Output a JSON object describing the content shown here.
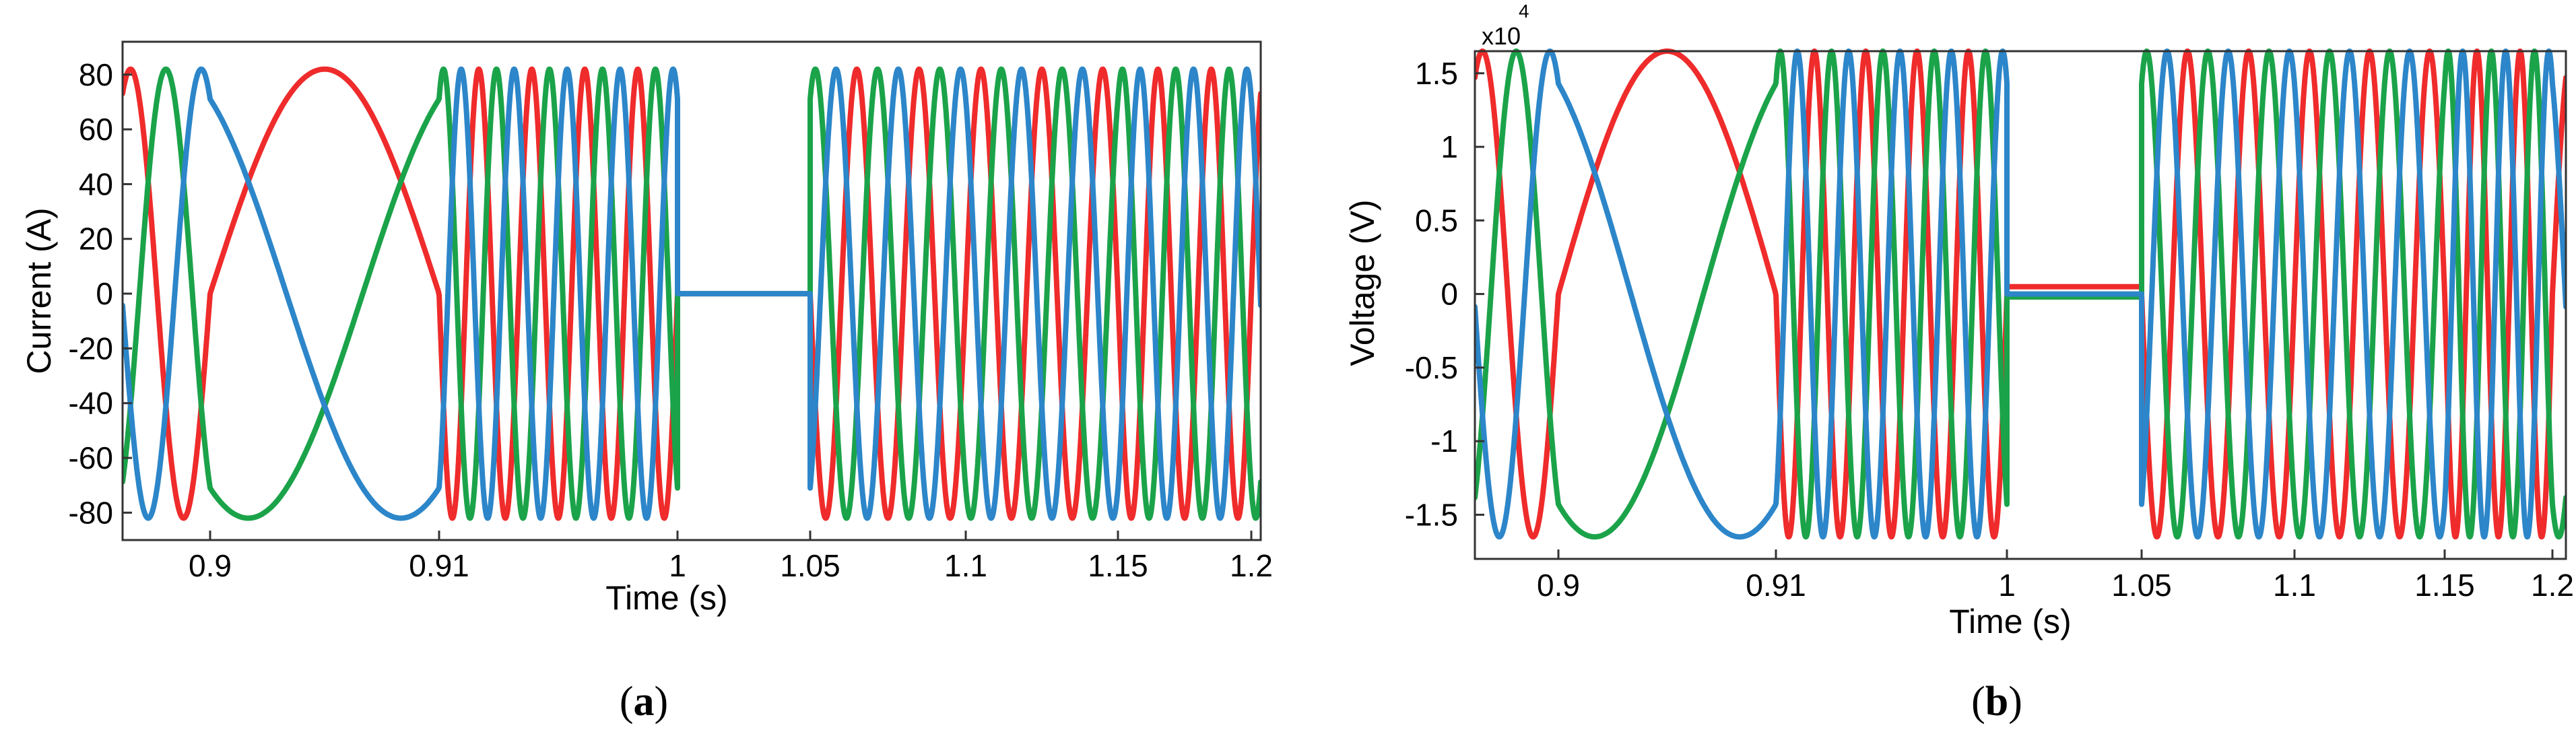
{
  "chart_data": [
    {
      "type": "line",
      "panel_label": "a",
      "xlabel": "Time (s)",
      "ylabel": "Current (A)",
      "x_ticks": [
        {
          "value": 0.9,
          "label": "0.9"
        },
        {
          "value": 0.91,
          "label": "0.91"
        },
        {
          "value": 1.0,
          "label": "1"
        },
        {
          "value": 1.05,
          "label": "1.05"
        },
        {
          "value": 1.1,
          "label": "1.1"
        },
        {
          "value": 1.15,
          "label": "1.15"
        },
        {
          "value": 1.2,
          "label": "1.2"
        }
      ],
      "y_ticks": [
        {
          "value": 80,
          "label": "80"
        },
        {
          "value": 60,
          "label": "60"
        },
        {
          "value": 40,
          "label": "40"
        },
        {
          "value": 20,
          "label": "20"
        },
        {
          "value": 0,
          "label": "0"
        },
        {
          "value": -20,
          "label": "-20"
        },
        {
          "value": -40,
          "label": "-40"
        },
        {
          "value": -60,
          "label": "-60"
        },
        {
          "value": -80,
          "label": "-80"
        }
      ],
      "ylim": [
        -90,
        92
      ],
      "amplitude": 82,
      "fault_interval": [
        1.0,
        1.05
      ],
      "grid": false,
      "series": [
        {
          "phase_deg": 0,
          "color": "#ef2b2b",
          "fault_level": 0
        },
        {
          "phase_deg": -120,
          "color": "#1ba34a",
          "fault_level": 0
        },
        {
          "phase_deg": 120,
          "color": "#2c86c9",
          "fault_level": 0
        }
      ]
    },
    {
      "type": "line",
      "panel_label": "b",
      "xlabel": "Time (s)",
      "ylabel": "Voltage (V)",
      "y_multiplier": "x10",
      "y_multiplier_exp": "4",
      "x_ticks": [
        {
          "value": 0.9,
          "label": "0.9"
        },
        {
          "value": 0.91,
          "label": "0.91"
        },
        {
          "value": 1.0,
          "label": "1"
        },
        {
          "value": 1.05,
          "label": "1.05"
        },
        {
          "value": 1.1,
          "label": "1.1"
        },
        {
          "value": 1.15,
          "label": "1.15"
        },
        {
          "value": 1.2,
          "label": "1.2"
        }
      ],
      "y_ticks": [
        {
          "value": 1.5,
          "label": "1.5"
        },
        {
          "value": 1,
          "label": "1"
        },
        {
          "value": 0.5,
          "label": "0.5"
        },
        {
          "value": 0,
          "label": "0"
        },
        {
          "value": -0.5,
          "label": "-0.5"
        },
        {
          "value": -1,
          "label": "-1"
        },
        {
          "value": -1.5,
          "label": "-1.5"
        }
      ],
      "ylim": [
        -1.8,
        1.65
      ],
      "amplitude": 1.65,
      "fault_interval": [
        1.0,
        1.05
      ],
      "grid": false,
      "series": [
        {
          "phase_deg": 0,
          "color": "#ef2b2b",
          "fault_level": 0.05
        },
        {
          "phase_deg": -120,
          "color": "#1ba34a",
          "fault_level": -0.02
        },
        {
          "phase_deg": 120,
          "color": "#2c86c9",
          "fault_level": 0
        }
      ]
    }
  ]
}
